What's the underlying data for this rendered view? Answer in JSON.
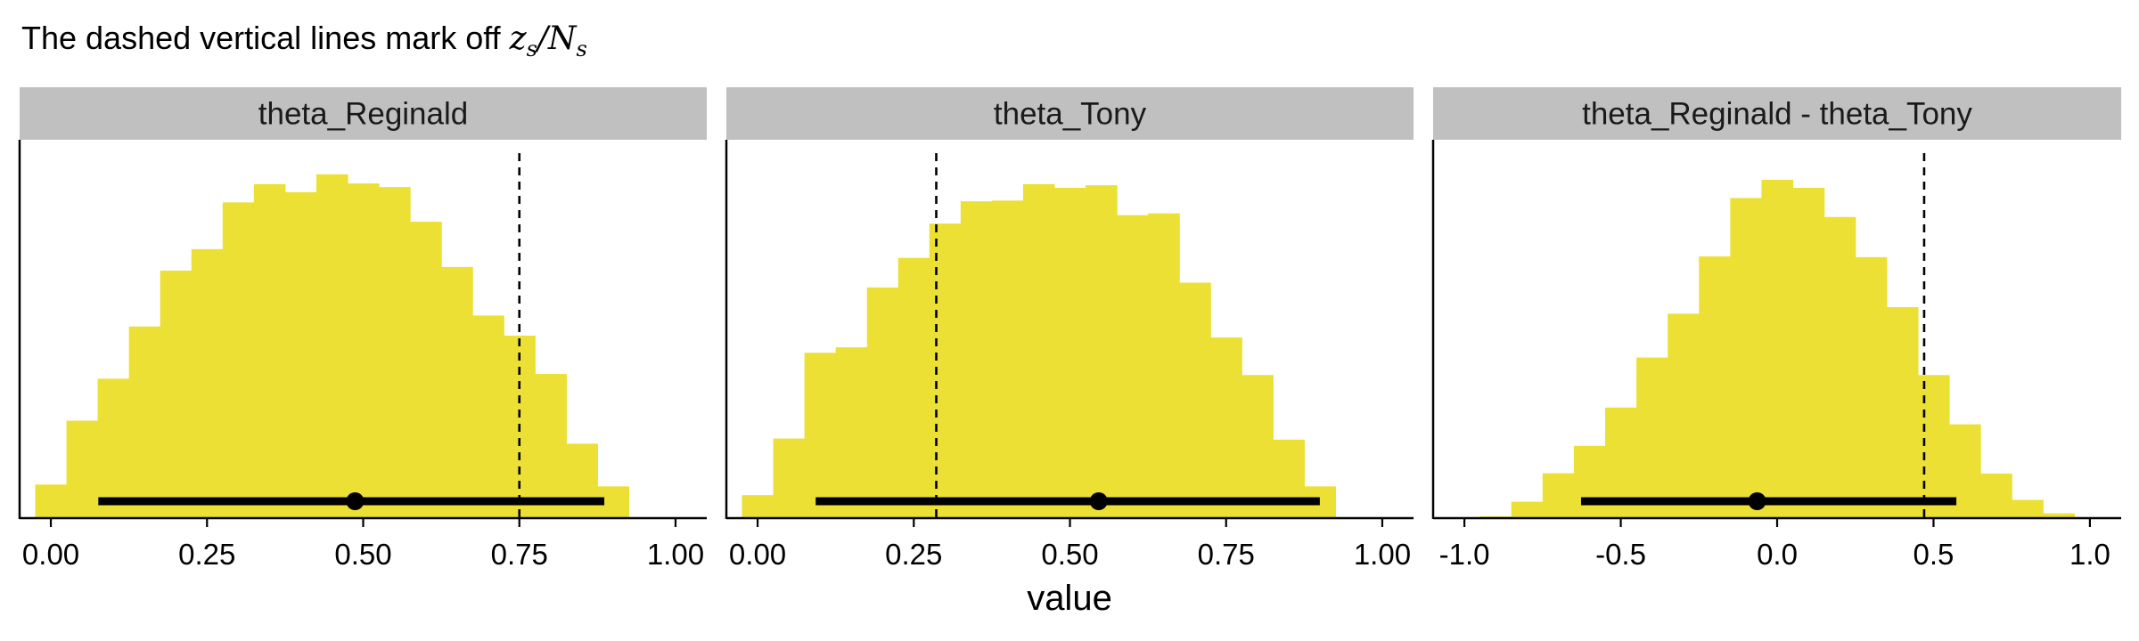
{
  "title": {
    "prefix": "The dashed vertical lines mark off ",
    "z": "z",
    "z_sub": "s",
    "slash": "/",
    "n": "N",
    "n_sub": "s"
  },
  "colors": {
    "bar": "#EBE033",
    "strip": "#C0C0C0",
    "interval": "#000000",
    "dash": "#000000"
  },
  "chart_data": [
    {
      "type": "bar",
      "panel": "theta_Reginald",
      "xlabel": "value",
      "xlim": [
        -0.05,
        1.05
      ],
      "ylim": [
        0,
        1
      ],
      "bin_width": 0.05,
      "bin_centers": [
        0.0,
        0.05,
        0.1,
        0.15,
        0.2,
        0.25,
        0.3,
        0.35,
        0.4,
        0.45,
        0.5,
        0.55,
        0.6,
        0.65,
        0.7,
        0.75,
        0.8,
        0.85,
        0.9,
        0.95,
        1.0
      ],
      "values": [
        0.092,
        0.267,
        0.382,
        0.525,
        0.678,
        0.737,
        0.865,
        0.915,
        0.893,
        0.942,
        0.917,
        0.907,
        0.812,
        0.688,
        0.555,
        0.5,
        0.395,
        0.204,
        0.087,
        0.0,
        0.0
      ],
      "dashed_x": 0.75,
      "point": 0.487,
      "interval": [
        0.076,
        0.886
      ],
      "ticks": [
        0.0,
        0.25,
        0.5,
        0.75,
        1.0
      ],
      "tick_labels": [
        "0.00",
        "0.25",
        "0.50",
        "0.75",
        "1.00"
      ]
    },
    {
      "type": "bar",
      "panel": "theta_Tony",
      "xlabel": "value",
      "xlim": [
        -0.05,
        1.05
      ],
      "ylim": [
        0,
        1
      ],
      "bin_width": 0.05,
      "bin_centers": [
        0.0,
        0.05,
        0.1,
        0.15,
        0.2,
        0.25,
        0.3,
        0.35,
        0.4,
        0.45,
        0.5,
        0.55,
        0.6,
        0.65,
        0.7,
        0.75,
        0.8,
        0.85,
        0.9,
        0.95,
        1.0
      ],
      "values": [
        0.063,
        0.218,
        0.453,
        0.468,
        0.632,
        0.713,
        0.807,
        0.868,
        0.87,
        0.915,
        0.905,
        0.912,
        0.83,
        0.835,
        0.645,
        0.495,
        0.392,
        0.215,
        0.087,
        0.0,
        0.0
      ],
      "dashed_x": 0.286,
      "point": 0.546,
      "interval": [
        0.093,
        0.9
      ],
      "ticks": [
        0.0,
        0.25,
        0.5,
        0.75,
        1.0
      ],
      "tick_labels": [
        "0.00",
        "0.25",
        "0.50",
        "0.75",
        "1.00"
      ]
    },
    {
      "type": "bar",
      "panel": "theta_Reginald - theta_Tony",
      "xlabel": "value",
      "xlim": [
        -1.1,
        1.1
      ],
      "ylim": [
        0,
        1
      ],
      "bin_width": 0.1,
      "bin_centers": [
        -0.9,
        -0.8,
        -0.7,
        -0.6,
        -0.5,
        -0.4,
        -0.3,
        -0.2,
        -0.1,
        0.0,
        0.1,
        0.2,
        0.3,
        0.4,
        0.5,
        0.6,
        0.7,
        0.8,
        0.9
      ],
      "values": [
        0.005,
        0.045,
        0.123,
        0.198,
        0.303,
        0.44,
        0.56,
        0.717,
        0.877,
        0.927,
        0.905,
        0.825,
        0.715,
        0.578,
        0.392,
        0.257,
        0.122,
        0.05,
        0.013
      ],
      "dashed_x": 0.47,
      "point": -0.064,
      "interval": [
        -0.627,
        0.573
      ],
      "ticks": [
        -1.0,
        -0.5,
        0.0,
        0.5,
        1.0
      ],
      "tick_labels": [
        "-1.0",
        "-0.5",
        "0.0",
        "0.5",
        "1.0"
      ]
    }
  ]
}
